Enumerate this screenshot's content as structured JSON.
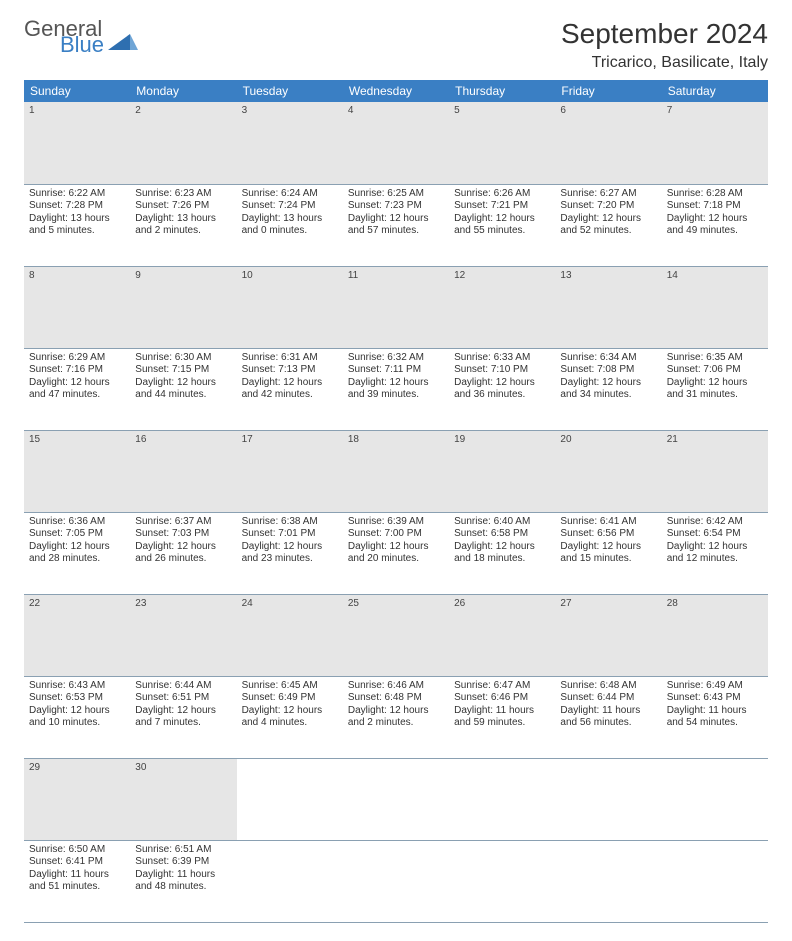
{
  "logo": {
    "top": "General",
    "bottom": "Blue",
    "triangle_color": "#2e6fb0"
  },
  "header": {
    "month": "September 2024",
    "location": "Tricarico, Basilicate, Italy"
  },
  "colors": {
    "header_bg": "#3a7fc4",
    "header_fg": "#ffffff",
    "daynum_bg": "#e6e6e6",
    "border": "#8aa0b2"
  },
  "columns": [
    "Sunday",
    "Monday",
    "Tuesday",
    "Wednesday",
    "Thursday",
    "Friday",
    "Saturday"
  ],
  "weeks": [
    [
      {
        "n": "1",
        "sr": "6:22 AM",
        "ss": "7:28 PM",
        "dl": "13 hours and 5 minutes."
      },
      {
        "n": "2",
        "sr": "6:23 AM",
        "ss": "7:26 PM",
        "dl": "13 hours and 2 minutes."
      },
      {
        "n": "3",
        "sr": "6:24 AM",
        "ss": "7:24 PM",
        "dl": "13 hours and 0 minutes."
      },
      {
        "n": "4",
        "sr": "6:25 AM",
        "ss": "7:23 PM",
        "dl": "12 hours and 57 minutes."
      },
      {
        "n": "5",
        "sr": "6:26 AM",
        "ss": "7:21 PM",
        "dl": "12 hours and 55 minutes."
      },
      {
        "n": "6",
        "sr": "6:27 AM",
        "ss": "7:20 PM",
        "dl": "12 hours and 52 minutes."
      },
      {
        "n": "7",
        "sr": "6:28 AM",
        "ss": "7:18 PM",
        "dl": "12 hours and 49 minutes."
      }
    ],
    [
      {
        "n": "8",
        "sr": "6:29 AM",
        "ss": "7:16 PM",
        "dl": "12 hours and 47 minutes."
      },
      {
        "n": "9",
        "sr": "6:30 AM",
        "ss": "7:15 PM",
        "dl": "12 hours and 44 minutes."
      },
      {
        "n": "10",
        "sr": "6:31 AM",
        "ss": "7:13 PM",
        "dl": "12 hours and 42 minutes."
      },
      {
        "n": "11",
        "sr": "6:32 AM",
        "ss": "7:11 PM",
        "dl": "12 hours and 39 minutes."
      },
      {
        "n": "12",
        "sr": "6:33 AM",
        "ss": "7:10 PM",
        "dl": "12 hours and 36 minutes."
      },
      {
        "n": "13",
        "sr": "6:34 AM",
        "ss": "7:08 PM",
        "dl": "12 hours and 34 minutes."
      },
      {
        "n": "14",
        "sr": "6:35 AM",
        "ss": "7:06 PM",
        "dl": "12 hours and 31 minutes."
      }
    ],
    [
      {
        "n": "15",
        "sr": "6:36 AM",
        "ss": "7:05 PM",
        "dl": "12 hours and 28 minutes."
      },
      {
        "n": "16",
        "sr": "6:37 AM",
        "ss": "7:03 PM",
        "dl": "12 hours and 26 minutes."
      },
      {
        "n": "17",
        "sr": "6:38 AM",
        "ss": "7:01 PM",
        "dl": "12 hours and 23 minutes."
      },
      {
        "n": "18",
        "sr": "6:39 AM",
        "ss": "7:00 PM",
        "dl": "12 hours and 20 minutes."
      },
      {
        "n": "19",
        "sr": "6:40 AM",
        "ss": "6:58 PM",
        "dl": "12 hours and 18 minutes."
      },
      {
        "n": "20",
        "sr": "6:41 AM",
        "ss": "6:56 PM",
        "dl": "12 hours and 15 minutes."
      },
      {
        "n": "21",
        "sr": "6:42 AM",
        "ss": "6:54 PM",
        "dl": "12 hours and 12 minutes."
      }
    ],
    [
      {
        "n": "22",
        "sr": "6:43 AM",
        "ss": "6:53 PM",
        "dl": "12 hours and 10 minutes."
      },
      {
        "n": "23",
        "sr": "6:44 AM",
        "ss": "6:51 PM",
        "dl": "12 hours and 7 minutes."
      },
      {
        "n": "24",
        "sr": "6:45 AM",
        "ss": "6:49 PM",
        "dl": "12 hours and 4 minutes."
      },
      {
        "n": "25",
        "sr": "6:46 AM",
        "ss": "6:48 PM",
        "dl": "12 hours and 2 minutes."
      },
      {
        "n": "26",
        "sr": "6:47 AM",
        "ss": "6:46 PM",
        "dl": "11 hours and 59 minutes."
      },
      {
        "n": "27",
        "sr": "6:48 AM",
        "ss": "6:44 PM",
        "dl": "11 hours and 56 minutes."
      },
      {
        "n": "28",
        "sr": "6:49 AM",
        "ss": "6:43 PM",
        "dl": "11 hours and 54 minutes."
      }
    ],
    [
      {
        "n": "29",
        "sr": "6:50 AM",
        "ss": "6:41 PM",
        "dl": "11 hours and 51 minutes."
      },
      {
        "n": "30",
        "sr": "6:51 AM",
        "ss": "6:39 PM",
        "dl": "11 hours and 48 minutes."
      },
      null,
      null,
      null,
      null,
      null
    ]
  ],
  "labels": {
    "sunrise": "Sunrise:",
    "sunset": "Sunset:",
    "daylight": "Daylight:"
  }
}
